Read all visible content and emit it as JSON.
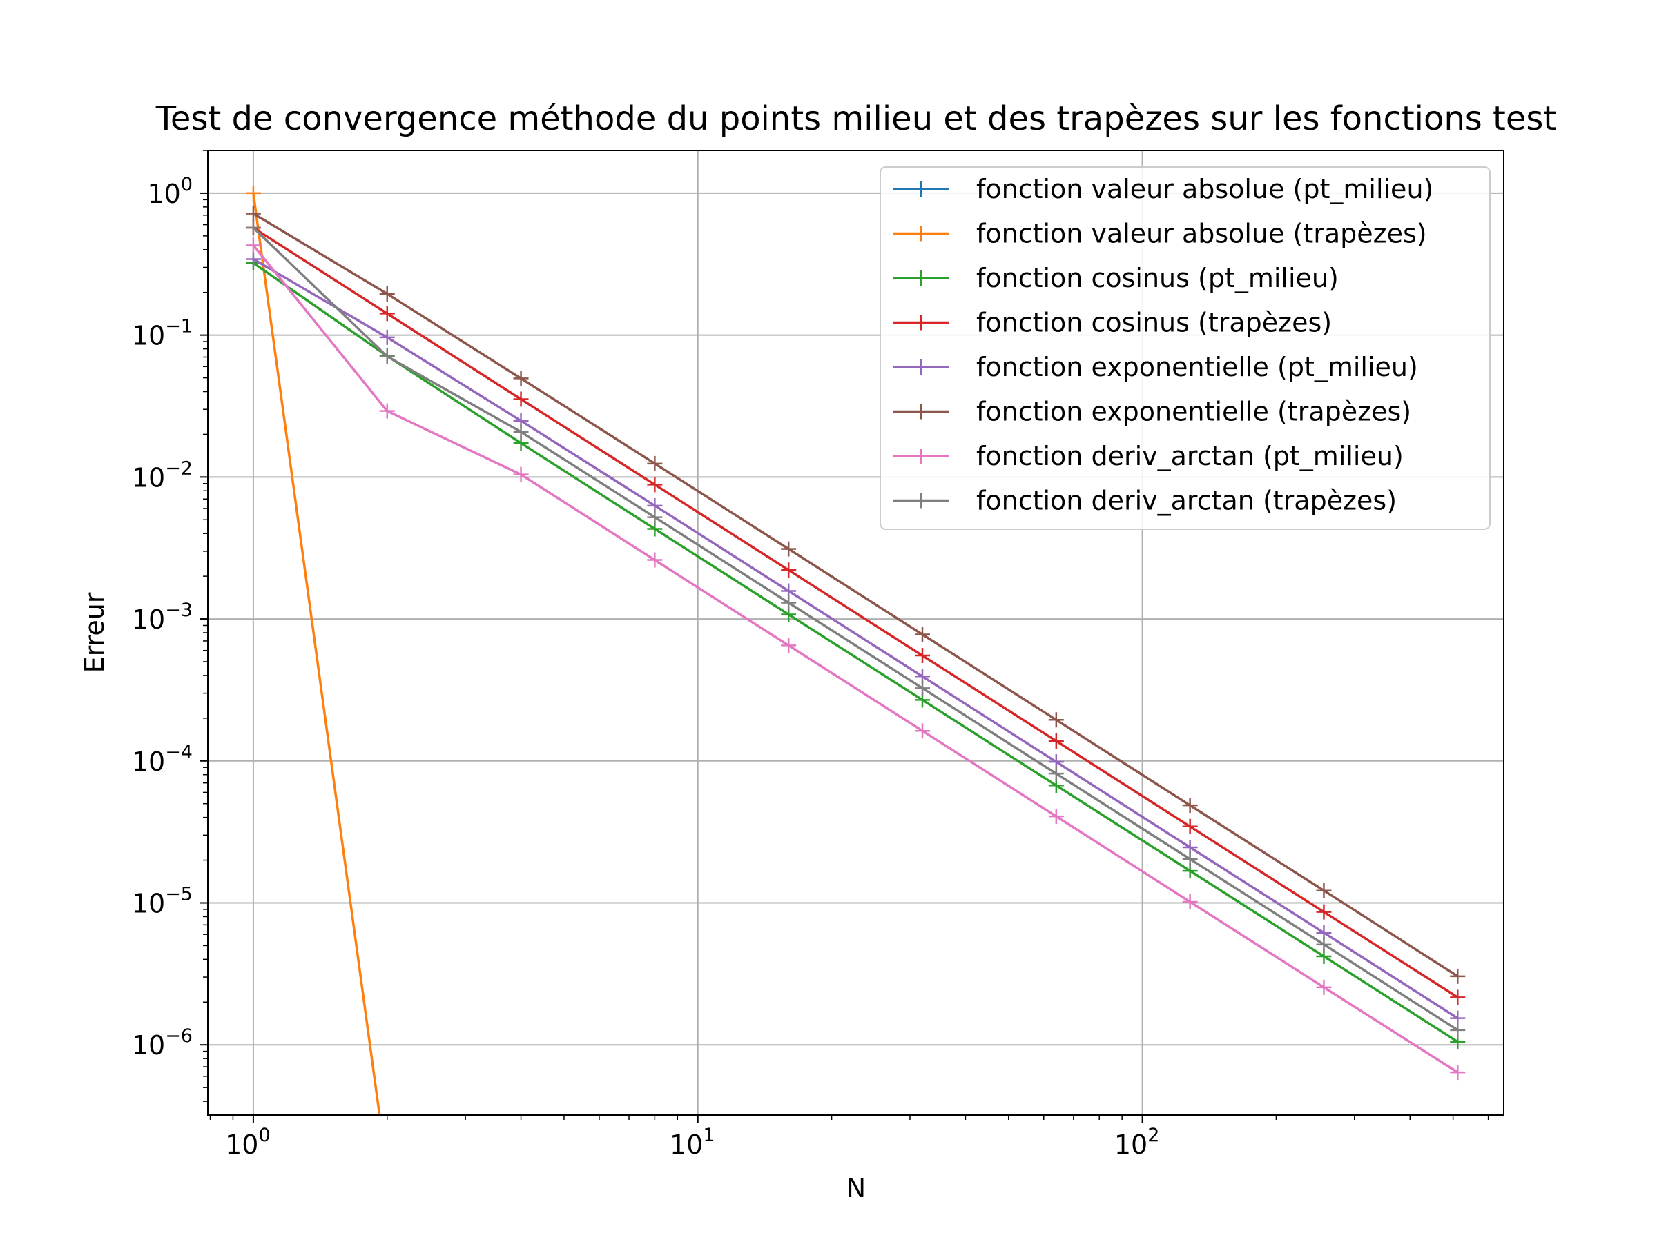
{
  "chart_data": {
    "type": "line",
    "title": "Test de convergence méthode du points milieu et des trapèzes sur les fonctions test",
    "xlabel": "N",
    "ylabel": "Erreur",
    "xscale": "log",
    "yscale": "log",
    "xlim": [
      0.79,
      650
    ],
    "ylim": [
      3.2e-07,
      2.0
    ],
    "grid": true,
    "legend_position": "top-right",
    "x_ticks": [
      {
        "value": 1,
        "base": "10",
        "exp": "0"
      },
      {
        "value": 10,
        "base": "10",
        "exp": "1"
      },
      {
        "value": 100,
        "base": "10",
        "exp": "2"
      }
    ],
    "y_ticks": [
      {
        "value": 1,
        "base": "10",
        "exp": "0"
      },
      {
        "value": 0.1,
        "base": "10",
        "exp": "−1"
      },
      {
        "value": 0.01,
        "base": "10",
        "exp": "−2"
      },
      {
        "value": 0.001,
        "base": "10",
        "exp": "−3"
      },
      {
        "value": 0.0001,
        "base": "10",
        "exp": "−4"
      },
      {
        "value": 1e-05,
        "base": "10",
        "exp": "−5"
      },
      {
        "value": 1e-06,
        "base": "10",
        "exp": "−6"
      }
    ],
    "x": [
      1,
      2,
      4,
      8,
      16,
      32,
      64,
      128,
      256,
      512
    ],
    "series": [
      {
        "name": "fonction valeur absolue (pt_milieu)",
        "color": "#1f77b4",
        "values": [
          0,
          0,
          0,
          0,
          0,
          0,
          0,
          0,
          0,
          0
        ]
      },
      {
        "name": "fonction valeur absolue (trapèzes)",
        "color": "#ff7f0e",
        "values": [
          1.0,
          0,
          0,
          0,
          0,
          0,
          0,
          0,
          0,
          0
        ]
      },
      {
        "name": "fonction cosinus (pt_milieu)",
        "color": "#2ca02c",
        "values": [
          0.3224,
          0.0713,
          0.01736,
          0.004311,
          0.001076,
          0.0002689,
          6.722e-05,
          1.68e-05,
          4.2e-06,
          1.05e-06
        ]
      },
      {
        "name": "fonction cosinus (trapèzes)",
        "color": "#d62728",
        "values": [
          0.5709,
          0.1418,
          0.03538,
          0.008843,
          0.00221,
          0.0005526,
          0.0001381,
          3.453e-05,
          8.63e-06,
          2.16e-06
        ]
      },
      {
        "name": "fonction exponentielle (pt_milieu)",
        "color": "#9467bd",
        "values": [
          0.3429,
          0.09643,
          0.0249,
          0.006285,
          0.001575,
          0.000394,
          9.852e-05,
          2.463e-05,
          6.16e-06,
          1.54e-06
        ]
      },
      {
        "name": "fonction exponentielle (trapèzes)",
        "color": "#8c564b",
        "values": [
          0.7183,
          0.1953,
          0.04955,
          0.01244,
          0.003112,
          0.0007782,
          0.0001946,
          4.865e-05,
          1.22e-05,
          3.04e-06
        ]
      },
      {
        "name": "fonction deriv_arctan (pt_milieu)",
        "color": "#e377c2",
        "values": [
          0.4292,
          0.0292,
          0.01042,
          0.002604,
          0.000651,
          0.0001628,
          4.07e-05,
          1.017e-05,
          2.54e-06,
          6.4e-07
        ]
      },
      {
        "name": "fonction deriv_arctan (trapèzes)",
        "color": "#7f7f7f",
        "values": [
          0.5708,
          0.0708,
          0.0208,
          0.005208,
          0.001302,
          0.0003255,
          8.14e-05,
          2.035e-05,
          5.09e-06,
          1.27e-06
        ]
      }
    ]
  }
}
